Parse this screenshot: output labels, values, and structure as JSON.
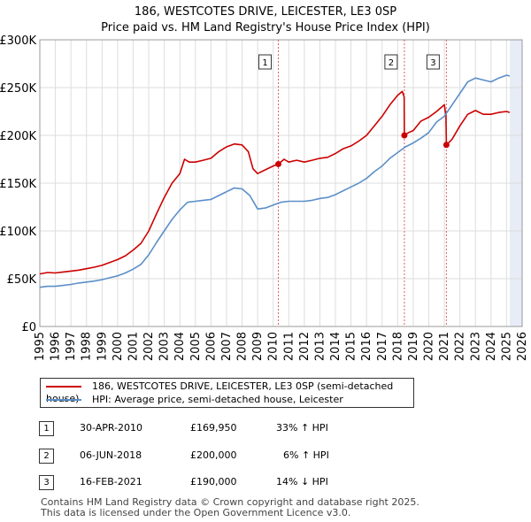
{
  "title_line1": "186, WESTCOTES DRIVE, LEICESTER, LE3 0SP",
  "title_line2": "Price paid vs. HM Land Registry's House Price Index (HPI)",
  "chart_data": {
    "type": "line",
    "ylim": [
      0,
      300000
    ],
    "xlim": [
      1995,
      2026
    ],
    "y_ticks": [
      0,
      50000,
      100000,
      150000,
      200000,
      250000,
      300000
    ],
    "y_tick_labels": [
      "£0",
      "£50K",
      "£100K",
      "£150K",
      "£200K",
      "£250K",
      "£300K"
    ],
    "x_ticks": [
      1995,
      1996,
      1997,
      1998,
      1999,
      2000,
      2001,
      2002,
      2003,
      2004,
      2005,
      2006,
      2007,
      2008,
      2009,
      2010,
      2011,
      2012,
      2013,
      2014,
      2015,
      2016,
      2017,
      2018,
      2019,
      2020,
      2021,
      2022,
      2023,
      2024,
      2025,
      2026
    ],
    "data_end_year": 2025.2,
    "colors": {
      "property": "#cc0000",
      "hpi": "#5b8fc9",
      "grid": "#dddddd",
      "vline": "#e06060",
      "shade": "#e8ecf6"
    },
    "series": [
      {
        "name": "186, WESTCOTES DRIVE, LEICESTER, LE3 0SP (semi-detached house)",
        "key": "property",
        "points": [
          [
            1995,
            55000
          ],
          [
            1995.5,
            56500
          ],
          [
            1996,
            56000
          ],
          [
            1996.5,
            57000
          ],
          [
            1997,
            58000
          ],
          [
            1997.5,
            59000
          ],
          [
            1998,
            60500
          ],
          [
            1998.5,
            62000
          ],
          [
            1999,
            64000
          ],
          [
            1999.5,
            67000
          ],
          [
            2000,
            70000
          ],
          [
            2000.5,
            74000
          ],
          [
            2001,
            80000
          ],
          [
            2001.5,
            87000
          ],
          [
            2002,
            100000
          ],
          [
            2002.5,
            118000
          ],
          [
            2003,
            135000
          ],
          [
            2003.5,
            150000
          ],
          [
            2004,
            160000
          ],
          [
            2004.3,
            175000
          ],
          [
            2004.6,
            172000
          ],
          [
            2005,
            172000
          ],
          [
            2005.5,
            174000
          ],
          [
            2006,
            176000
          ],
          [
            2006.5,
            183000
          ],
          [
            2007,
            188000
          ],
          [
            2007.5,
            191000
          ],
          [
            2008,
            190000
          ],
          [
            2008.4,
            183000
          ],
          [
            2008.7,
            165000
          ],
          [
            2009,
            160000
          ],
          [
            2009.5,
            164000
          ],
          [
            2010,
            168000
          ],
          [
            2010.33,
            169950
          ],
          [
            2010.7,
            175000
          ],
          [
            2011,
            172000
          ],
          [
            2011.5,
            174000
          ],
          [
            2012,
            172000
          ],
          [
            2012.5,
            174000
          ],
          [
            2013,
            176000
          ],
          [
            2013.5,
            177000
          ],
          [
            2014,
            181000
          ],
          [
            2014.5,
            186000
          ],
          [
            2015,
            189000
          ],
          [
            2015.5,
            194000
          ],
          [
            2016,
            200000
          ],
          [
            2016.5,
            210000
          ],
          [
            2017,
            220000
          ],
          [
            2017.5,
            232000
          ],
          [
            2018,
            242000
          ],
          [
            2018.3,
            246000
          ],
          [
            2018.42,
            240000
          ],
          [
            2018.43,
            200000
          ],
          [
            2018.7,
            203000
          ],
          [
            2019,
            205000
          ],
          [
            2019.5,
            215000
          ],
          [
            2020,
            219000
          ],
          [
            2020.5,
            225000
          ],
          [
            2021,
            232000
          ],
          [
            2021.1,
            220000
          ],
          [
            2021.13,
            190000
          ],
          [
            2021.5,
            196000
          ],
          [
            2022,
            210000
          ],
          [
            2022.5,
            222000
          ],
          [
            2023,
            226000
          ],
          [
            2023.5,
            222000
          ],
          [
            2024,
            222000
          ],
          [
            2024.5,
            224000
          ],
          [
            2025,
            225000
          ],
          [
            2025.2,
            224000
          ]
        ]
      },
      {
        "name": "HPI: Average price, semi-detached house, Leicester",
        "key": "hpi",
        "points": [
          [
            1995,
            41000
          ],
          [
            1995.5,
            42000
          ],
          [
            1996,
            42000
          ],
          [
            1996.5,
            43000
          ],
          [
            1997,
            44000
          ],
          [
            1997.5,
            45500
          ],
          [
            1998,
            46500
          ],
          [
            1998.5,
            47500
          ],
          [
            1999,
            49000
          ],
          [
            1999.5,
            51000
          ],
          [
            2000,
            53000
          ],
          [
            2000.5,
            56000
          ],
          [
            2001,
            60000
          ],
          [
            2001.5,
            65000
          ],
          [
            2002,
            75000
          ],
          [
            2002.5,
            88000
          ],
          [
            2003,
            100000
          ],
          [
            2003.5,
            112000
          ],
          [
            2004,
            122000
          ],
          [
            2004.5,
            130000
          ],
          [
            2005,
            131000
          ],
          [
            2005.5,
            132000
          ],
          [
            2006,
            133000
          ],
          [
            2006.5,
            137000
          ],
          [
            2007,
            141000
          ],
          [
            2007.5,
            145000
          ],
          [
            2008,
            144000
          ],
          [
            2008.5,
            137000
          ],
          [
            2009,
            123000
          ],
          [
            2009.5,
            124000
          ],
          [
            2010,
            127000
          ],
          [
            2010.5,
            130000
          ],
          [
            2011,
            131000
          ],
          [
            2011.5,
            131000
          ],
          [
            2012,
            131000
          ],
          [
            2012.5,
            132000
          ],
          [
            2013,
            134000
          ],
          [
            2013.5,
            135000
          ],
          [
            2014,
            138000
          ],
          [
            2014.5,
            142000
          ],
          [
            2015,
            146000
          ],
          [
            2015.5,
            150000
          ],
          [
            2016,
            155000
          ],
          [
            2016.5,
            162000
          ],
          [
            2017,
            168000
          ],
          [
            2017.5,
            176000
          ],
          [
            2018,
            182000
          ],
          [
            2018.5,
            188000
          ],
          [
            2019,
            192000
          ],
          [
            2019.5,
            197000
          ],
          [
            2020,
            203000
          ],
          [
            2020.5,
            214000
          ],
          [
            2021,
            220000
          ],
          [
            2021.5,
            232000
          ],
          [
            2022,
            244000
          ],
          [
            2022.5,
            256000
          ],
          [
            2023,
            260000
          ],
          [
            2023.5,
            258000
          ],
          [
            2024,
            256000
          ],
          [
            2024.5,
            260000
          ],
          [
            2025,
            263000
          ],
          [
            2025.2,
            262000
          ]
        ]
      }
    ],
    "sales": [
      {
        "label": "1",
        "year": 2010.33,
        "price": 169950
      },
      {
        "label": "2",
        "year": 2018.43,
        "price": 200000
      },
      {
        "label": "3",
        "year": 2021.13,
        "price": 190000
      }
    ]
  },
  "legend": {
    "property_label": "186, WESTCOTES DRIVE, LEICESTER, LE3 0SP (semi-detached house)",
    "hpi_label": "HPI: Average price, semi-detached house, Leicester"
  },
  "transactions": [
    {
      "num": "1",
      "date": "30-APR-2010",
      "price": "£169,950",
      "hpi": "33% ↑ HPI"
    },
    {
      "num": "2",
      "date": "06-JUN-2018",
      "price": "£200,000",
      "hpi": "6% ↑ HPI"
    },
    {
      "num": "3",
      "date": "16-FEB-2021",
      "price": "£190,000",
      "hpi": "14% ↓ HPI"
    }
  ],
  "footer_line1": "Contains HM Land Registry data © Crown copyright and database right 2025.",
  "footer_line2": "This data is licensed under the Open Government Licence v3.0."
}
